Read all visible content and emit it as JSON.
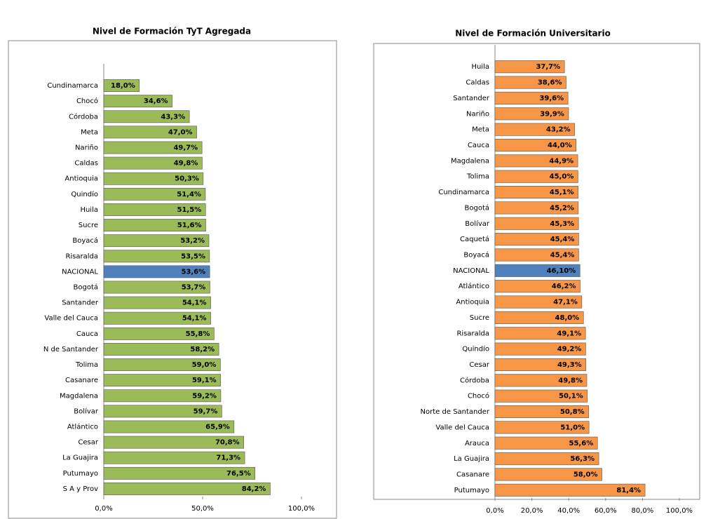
{
  "chart_data": [
    {
      "type": "bar",
      "orientation": "horizontal",
      "title": "Nivel de Formación TyT Agregada",
      "categories": [
        "Cundinamarca",
        "Chocó",
        "Córdoba",
        "Meta",
        "Nariño",
        "Caldas",
        "Antioquia",
        "Quindío",
        "Huila",
        "Sucre",
        "Boyacá",
        "Risaralda",
        "NACIONAL",
        "Bogotá",
        "Santander",
        "Valle del Cauca",
        "Cauca",
        "N de Santander",
        "Tolima",
        "Casanare",
        "Magdalena",
        "Bolívar",
        "Atlántico",
        "Cesar",
        "La Guajira",
        "Putumayo",
        "S A y Prov"
      ],
      "values": [
        18.0,
        34.6,
        43.3,
        47.0,
        49.7,
        49.8,
        50.3,
        51.4,
        51.5,
        51.6,
        53.2,
        53.5,
        53.6,
        53.7,
        54.1,
        54.1,
        55.8,
        58.2,
        59.0,
        59.1,
        59.2,
        59.7,
        65.9,
        70.8,
        71.3,
        76.5,
        84.2
      ],
      "value_labels": [
        "18,0%",
        "34,6%",
        "43,3%",
        "47,0%",
        "49,7%",
        "49,8%",
        "50,3%",
        "51,4%",
        "51,5%",
        "51,6%",
        "53,2%",
        "53,5%",
        "53,6%",
        "53,7%",
        "54,1%",
        "54,1%",
        "55,8%",
        "58,2%",
        "59,0%",
        "59,1%",
        "59,2%",
        "59,7%",
        "65,9%",
        "70,8%",
        "71,3%",
        "76,5%",
        "84,2%"
      ],
      "colors": [
        "#9bbb59",
        "#9bbb59",
        "#9bbb59",
        "#9bbb59",
        "#9bbb59",
        "#9bbb59",
        "#9bbb59",
        "#9bbb59",
        "#9bbb59",
        "#9bbb59",
        "#9bbb59",
        "#9bbb59",
        "#4f81bd",
        "#9bbb59",
        "#9bbb59",
        "#9bbb59",
        "#9bbb59",
        "#9bbb59",
        "#9bbb59",
        "#9bbb59",
        "#9bbb59",
        "#9bbb59",
        "#9bbb59",
        "#9bbb59",
        "#9bbb59",
        "#9bbb59",
        "#9bbb59"
      ],
      "xlim": [
        0,
        100
      ],
      "xticks": [
        {
          "value": 0,
          "label": "0,0%"
        },
        {
          "value": 50,
          "label": "50,0%"
        },
        {
          "value": 100,
          "label": "100,0%"
        }
      ]
    },
    {
      "type": "bar",
      "orientation": "horizontal",
      "title": "Nivel de Formación Universitario",
      "categories": [
        "Huila",
        "Caldas",
        "Santander",
        "Nariño",
        "Meta",
        "Cauca",
        "Magdalena",
        "Tolima",
        "Cundinamarca",
        "Bogotá",
        "Bolívar",
        "Caquetá",
        "Boyacá",
        "NACIONAL",
        "Atlántico",
        "Antioquia",
        "Sucre",
        "Risaralda",
        "Quindío",
        "Cesar",
        "Córdoba",
        "Chocó",
        "Norte de Santander",
        "Valle del Cauca",
        "Arauca",
        "La Guajira",
        "Casanare",
        "Putumayo"
      ],
      "values": [
        37.7,
        38.6,
        39.6,
        39.9,
        43.2,
        44.0,
        44.9,
        45.0,
        45.1,
        45.2,
        45.3,
        45.4,
        45.4,
        46.1,
        46.2,
        47.1,
        48.0,
        49.1,
        49.2,
        49.3,
        49.8,
        50.1,
        50.8,
        51.0,
        55.6,
        56.3,
        58.0,
        81.4
      ],
      "value_labels": [
        "37,7%",
        "38,6%",
        "39,6%",
        "39,9%",
        "43,2%",
        "44,0%",
        "44,9%",
        "45,0%",
        "45,1%",
        "45,2%",
        "45,3%",
        "45,4%",
        "45,4%",
        "46,10%",
        "46,2%",
        "47,1%",
        "48,0%",
        "49,1%",
        "49,2%",
        "49,3%",
        "49,8%",
        "50,1%",
        "50,8%",
        "51,0%",
        "55,6%",
        "56,3%",
        "58,0%",
        "81,4%"
      ],
      "colors": [
        "#f79646",
        "#f79646",
        "#f79646",
        "#f79646",
        "#f79646",
        "#f79646",
        "#f79646",
        "#f79646",
        "#f79646",
        "#f79646",
        "#f79646",
        "#f79646",
        "#f79646",
        "#4f81bd",
        "#f79646",
        "#f79646",
        "#f79646",
        "#f79646",
        "#f79646",
        "#f79646",
        "#f79646",
        "#f79646",
        "#f79646",
        "#f79646",
        "#f79646",
        "#f79646",
        "#f79646",
        "#f79646"
      ],
      "xlim": [
        0,
        100
      ],
      "xticks": [
        {
          "value": 0,
          "label": "0,0%"
        },
        {
          "value": 20,
          "label": "20,0%"
        },
        {
          "value": 40,
          "label": "40,0%"
        },
        {
          "value": 60,
          "label": "60,0%"
        },
        {
          "value": 80,
          "label": "80,0%"
        },
        {
          "value": 100,
          "label": "100,0%"
        }
      ]
    }
  ]
}
